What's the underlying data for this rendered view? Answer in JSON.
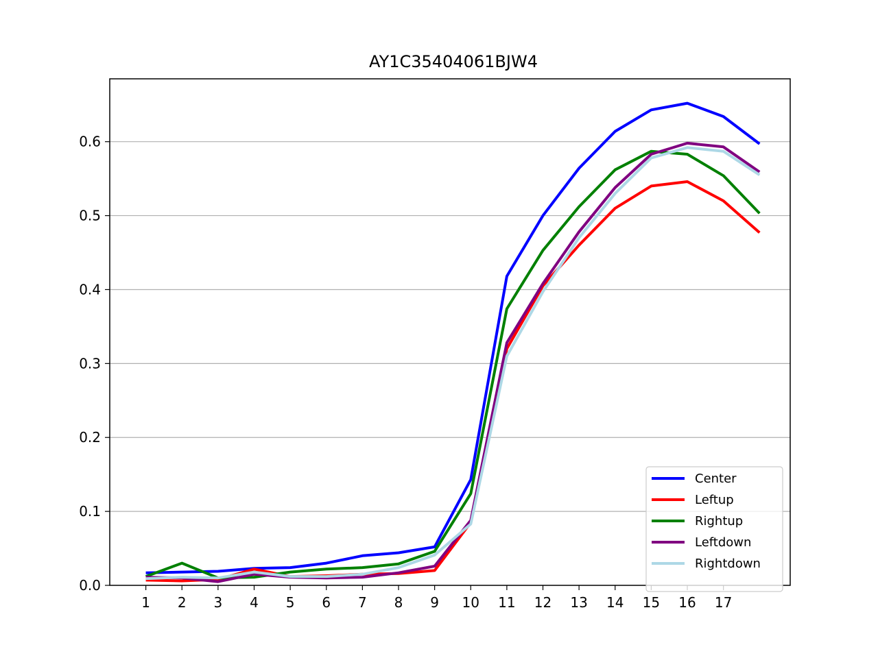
{
  "chart_data": {
    "type": "line",
    "title": "AY1C35404061BJW4",
    "xlabel": "",
    "ylabel": "",
    "x": [
      1,
      2,
      3,
      4,
      5,
      6,
      7,
      8,
      9,
      10,
      11,
      12,
      13,
      14,
      15,
      16,
      17,
      18
    ],
    "x_tick_labels": [
      "1",
      "2",
      "3",
      "4",
      "5",
      "6",
      "7",
      "8",
      "9",
      "10",
      "11",
      "12",
      "13",
      "14",
      "15",
      "16",
      "17"
    ],
    "y_ticks": [
      0.0,
      0.1,
      0.2,
      0.3,
      0.4,
      0.5,
      0.6
    ],
    "y_tick_labels": [
      "0.0",
      "0.1",
      "0.2",
      "0.3",
      "0.4",
      "0.5",
      "0.6"
    ],
    "xlim": [
      0.0,
      18.85
    ],
    "ylim": [
      0,
      0.685
    ],
    "grid": "horizontal",
    "legend_position": "lower-right",
    "series": [
      {
        "name": "Center",
        "color": "#0000ff",
        "values": [
          0.017,
          0.018,
          0.019,
          0.023,
          0.024,
          0.03,
          0.04,
          0.044,
          0.052,
          0.143,
          0.418,
          0.5,
          0.564,
          0.614,
          0.643,
          0.652,
          0.634,
          0.597
        ]
      },
      {
        "name": "Leftup",
        "color": "#ff0000",
        "values": [
          0.007,
          0.006,
          0.008,
          0.022,
          0.012,
          0.013,
          0.015,
          0.016,
          0.02,
          0.085,
          0.32,
          0.405,
          0.46,
          0.51,
          0.54,
          0.546,
          0.52,
          0.477
        ]
      },
      {
        "name": "Rightup",
        "color": "#008000",
        "values": [
          0.012,
          0.03,
          0.01,
          0.011,
          0.018,
          0.022,
          0.024,
          0.029,
          0.046,
          0.124,
          0.374,
          0.453,
          0.512,
          0.562,
          0.587,
          0.583,
          0.554,
          0.503
        ]
      },
      {
        "name": "Leftdown",
        "color": "#800080",
        "values": [
          0.011,
          0.01,
          0.005,
          0.015,
          0.011,
          0.01,
          0.011,
          0.017,
          0.026,
          0.088,
          0.328,
          0.408,
          0.478,
          0.538,
          0.583,
          0.598,
          0.593,
          0.559
        ]
      },
      {
        "name": "Rightdown",
        "color": "#add8e6",
        "values": [
          0.009,
          0.011,
          0.01,
          0.018,
          0.012,
          0.012,
          0.015,
          0.024,
          0.041,
          0.083,
          0.31,
          0.397,
          0.47,
          0.53,
          0.578,
          0.592,
          0.587,
          0.555
        ]
      }
    ]
  }
}
